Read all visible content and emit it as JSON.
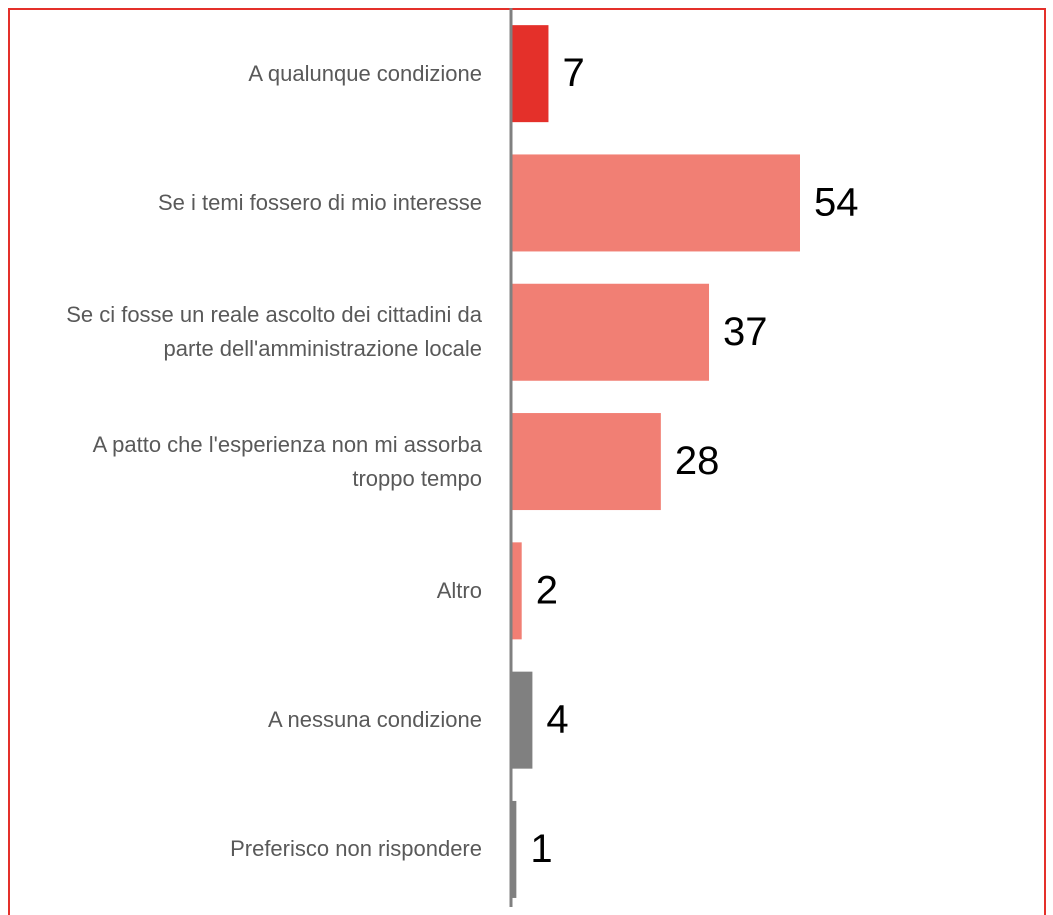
{
  "chart_data": {
    "type": "barh",
    "categories": [
      "A qualunque condizione",
      "Se i temi fossero di mio interesse",
      "Se ci fosse un reale ascolto dei cittadini da parte dell'amministrazione locale",
      "A patto che l'esperienza non mi assorba troppo tempo",
      "Altro",
      "A nessuna condizione",
      "Preferisco non rispondere"
    ],
    "values": [
      7,
      54,
      37,
      28,
      2,
      4,
      1
    ],
    "colors": [
      "#e4302a",
      "#f17f74",
      "#f17f74",
      "#f17f74",
      "#f17f74",
      "#808080",
      "#808080"
    ]
  }
}
